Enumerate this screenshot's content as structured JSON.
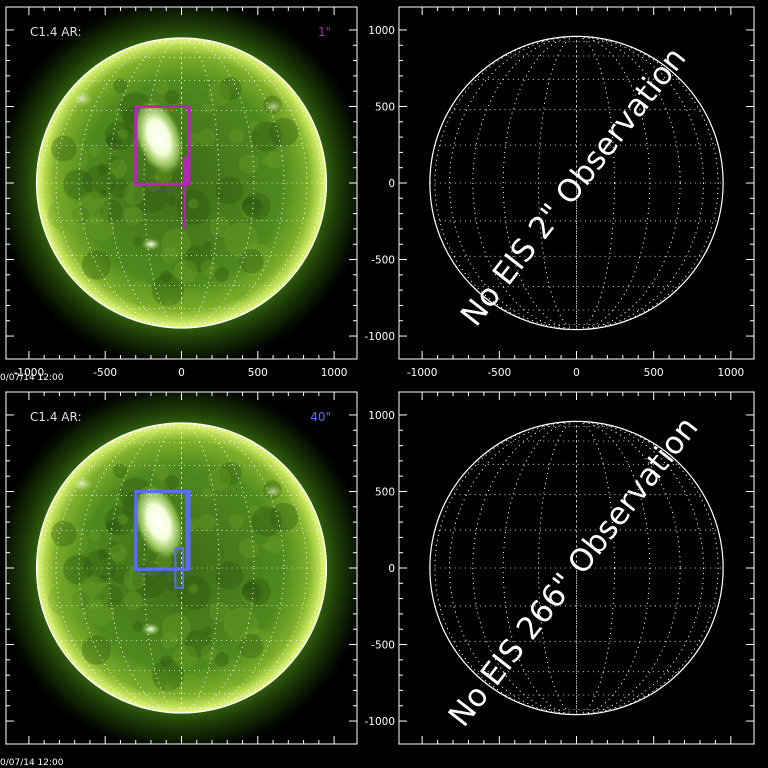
{
  "panels": [
    {
      "id": "top-left",
      "type": "image",
      "label": "C1.4 AR:",
      "slit_label": "1\"",
      "accent": "#b02ab4",
      "timestamp": "0/07/14 12:00",
      "show_y_ticks": false,
      "show_x_ticks": true
    },
    {
      "id": "top-right",
      "type": "empty",
      "message": "No EIS 2\" Observation",
      "show_y_ticks": true,
      "show_x_ticks": true
    },
    {
      "id": "bottom-left",
      "type": "image",
      "label": "C1.4 AR:",
      "slit_label": "40\"",
      "accent": "#5a6ef0",
      "timestamp": "0/07/14 12:00",
      "show_y_ticks": false,
      "show_x_ticks": false
    },
    {
      "id": "bottom-right",
      "type": "empty",
      "message": "No EIS 266\" Observation",
      "show_y_ticks": true,
      "show_x_ticks": false
    }
  ],
  "axes": {
    "x_ticks": [
      "-1000",
      "-500",
      "0",
      "500",
      "1000"
    ],
    "y_ticks": [
      "1000",
      "500",
      "0",
      "-500",
      "-1000"
    ],
    "range": [
      -1150,
      1150
    ]
  },
  "colors": {
    "sun_core": "#4a7a1a",
    "sun_limb": "#d8f070",
    "frame": "#ffffff",
    "grid": "#ffffff"
  }
}
